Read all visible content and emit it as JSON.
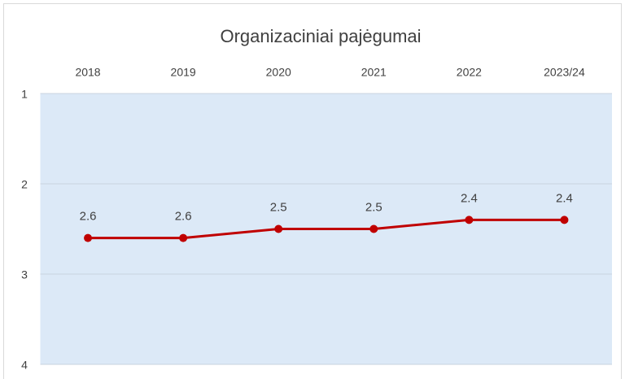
{
  "chart_data": {
    "type": "line",
    "title": "Organizaciniai pajėgumai",
    "categories": [
      "2018",
      "2019",
      "2020",
      "2021",
      "2022",
      "2023/24"
    ],
    "series": [
      {
        "name": "Organizaciniai pajėgumai",
        "color": "#c00000",
        "values": [
          2.6,
          2.6,
          2.5,
          2.5,
          2.4,
          2.4
        ]
      }
    ],
    "ylim": [
      1,
      4
    ],
    "yticks": [
      1,
      2,
      3,
      4
    ],
    "y_reversed": true,
    "x_axis_position": "top",
    "grid": true
  }
}
